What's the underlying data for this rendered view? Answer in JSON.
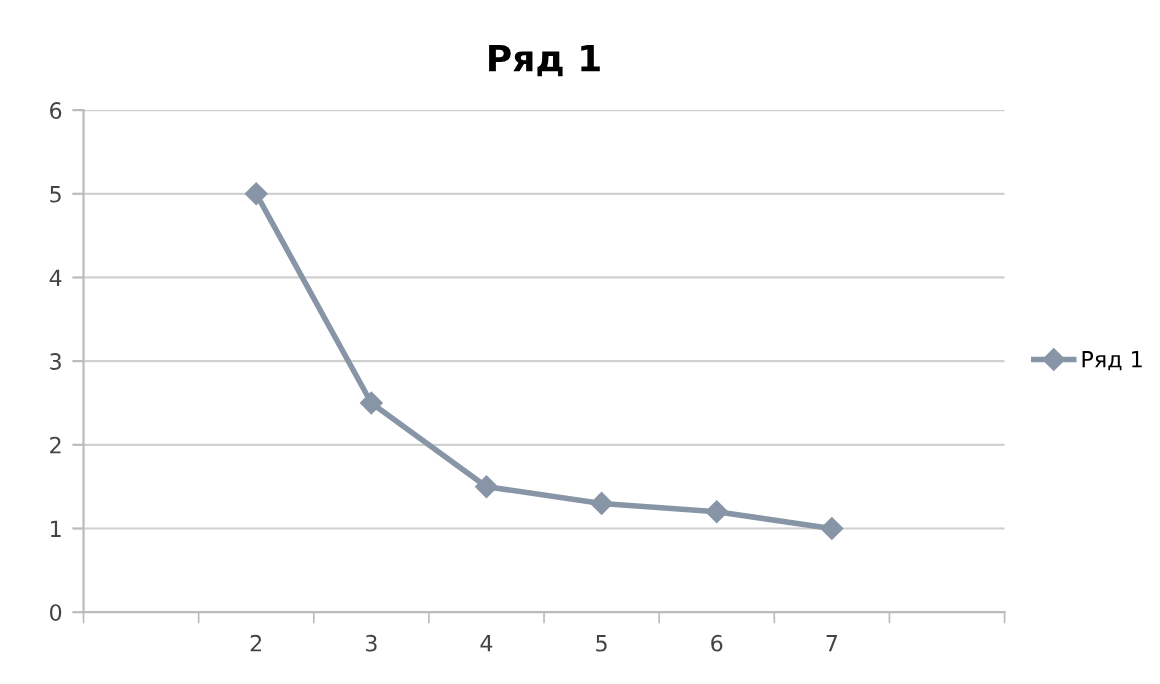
{
  "chart_data": {
    "type": "line",
    "title": "Ряд 1",
    "categories": [
      null,
      "2",
      "3",
      "4",
      "5",
      "6",
      "7",
      null
    ],
    "series": [
      {
        "name": "Ряд 1",
        "color": "#8795a6",
        "values": [
          null,
          5,
          2.5,
          1.5,
          1.3,
          1.2,
          1.0,
          null
        ]
      }
    ],
    "ylim": [
      0,
      6
    ],
    "yticks": [
      0,
      1,
      2,
      3,
      4,
      5,
      6
    ],
    "grid": "y",
    "legend": "right",
    "marker": "diamond",
    "line_style": "solid"
  }
}
